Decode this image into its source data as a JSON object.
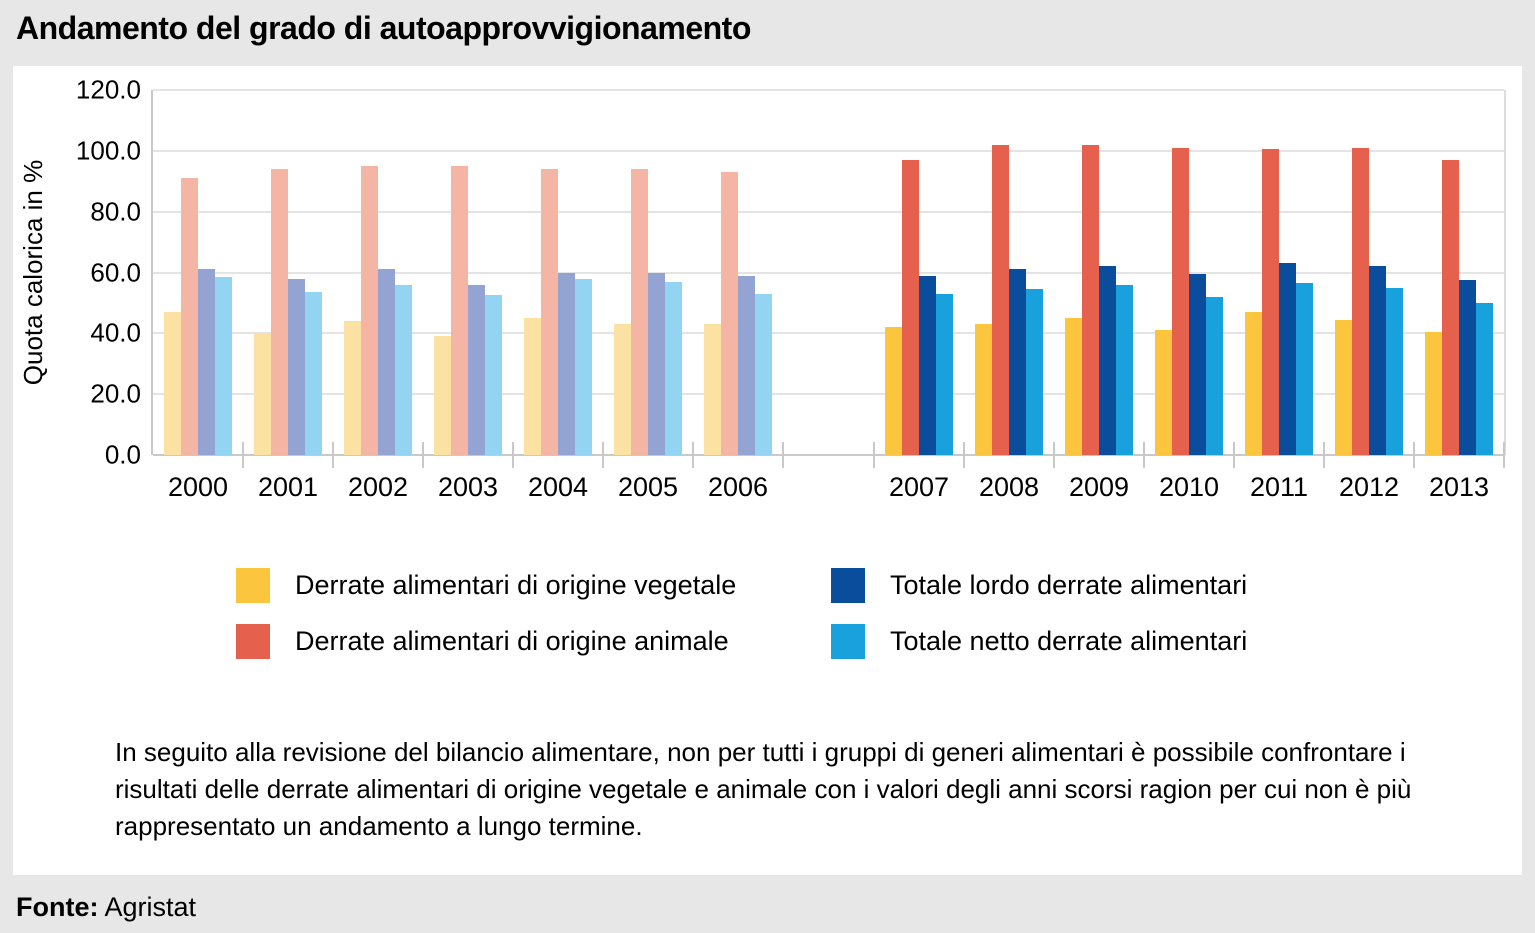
{
  "title": "Andamento del grado di autoapprovvigionamento",
  "chart_data": {
    "type": "bar",
    "title": "Andamento del grado di autoapprovvigionamento",
    "xlabel": "",
    "ylabel": "Quota calorica in %",
    "ylim": [
      0,
      120
    ],
    "yticks": [
      120,
      100,
      80,
      60,
      40,
      20,
      0
    ],
    "ytick_labels": [
      "120.0",
      "100.0",
      "80.0",
      "60.0",
      "40.0",
      "20.0",
      "0.0"
    ],
    "grid": true,
    "legend_position": "bottom",
    "series_names": [
      "Derrate alimentari di origine vegetale",
      "Derrate alimentari di origine animale",
      "Totale lordo derrate alimentari",
      "Totale netto derrate alimentari"
    ],
    "colors": [
      "#FBC53D",
      "#E5614E",
      "#0B4D9D",
      "#18A1DC"
    ],
    "colors_faded": [
      "#FCE2A2",
      "#F4B5A5",
      "#93A3D2",
      "#93D4F3"
    ],
    "panels": [
      {
        "name": "2000-2006",
        "faded": true,
        "categories": [
          "2000",
          "2001",
          "2002",
          "2003",
          "2004",
          "2005",
          "2006"
        ],
        "series": [
          {
            "name": "Derrate alimentari di origine vegetale",
            "values": [
              47,
              40,
              44,
              39,
              45,
              43,
              43
            ]
          },
          {
            "name": "Derrate alimentari di origine animale",
            "values": [
              91,
              94,
              95,
              95,
              94,
              94,
              93
            ]
          },
          {
            "name": "Totale lordo derrate alimentari",
            "values": [
              61,
              58,
              61,
              56,
              60,
              60,
              59
            ]
          },
          {
            "name": "Totale netto derrate alimentari",
            "values": [
              58.5,
              53.5,
              56,
              52.5,
              58,
              57,
              53
            ]
          }
        ]
      },
      {
        "name": "2007-2013",
        "faded": false,
        "categories": [
          "2007",
          "2008",
          "2009",
          "2010",
          "2011",
          "2012",
          "2013"
        ],
        "series": [
          {
            "name": "Derrate alimentari di origine vegetale",
            "values": [
              42,
              43,
              45,
              41,
              47,
              44.5,
              40.5
            ]
          },
          {
            "name": "Derrate alimentari di origine animale",
            "values": [
              97,
              102,
              102,
              101,
              100.5,
              101,
              97
            ]
          },
          {
            "name": "Totale lordo derrate alimentari",
            "values": [
              59,
              61,
              62,
              59.5,
              63,
              62,
              57.5
            ]
          },
          {
            "name": "Totale netto derrate alimentari",
            "values": [
              53,
              54.5,
              56,
              52,
              56.5,
              55,
              50
            ]
          }
        ]
      }
    ]
  },
  "legend": {
    "items": [
      {
        "label": "Derrate alimentari di origine vegetale",
        "color": "#FBC53D",
        "column": 1,
        "row": 1
      },
      {
        "label": "Totale lordo derrate alimentari",
        "color": "#0B4D9D",
        "column": 2,
        "row": 1
      },
      {
        "label": "Derrate alimentari di origine animale",
        "color": "#E5614E",
        "column": 1,
        "row": 2
      },
      {
        "label": "Totale netto derrate alimentari",
        "color": "#18A1DC",
        "column": 2,
        "row": 2
      }
    ]
  },
  "note": "In seguito alla revisione del bilancio alimentare, non per tutti i gruppi di generi alimentari è possibile confrontare i risultati delle derrate alimentari di origine vegetale e animale con i valori degli anni scorsi ragion per cui non è più rappresentato un andamento a lungo termine.",
  "source": {
    "label": "Fonte:",
    "value": "Agristat"
  }
}
